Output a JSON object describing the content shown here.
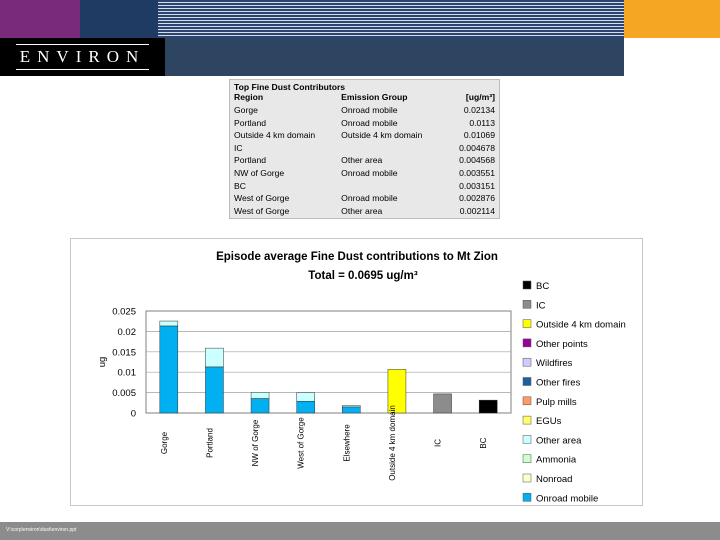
{
  "header": {
    "logo_text": "ENVIRON",
    "colors": {
      "purple": "#7a2a7a",
      "navy": "#1f3a63",
      "orange": "#f5a623",
      "slate": "#2e4562"
    }
  },
  "table": {
    "title": "Top Fine Dust Contributors",
    "headers": [
      "Region",
      "Emission Group",
      "[ug/m³]"
    ],
    "rows": [
      [
        "Gorge",
        "Onroad mobile",
        "0.02134"
      ],
      [
        "Portland",
        "Onroad mobile",
        "0.0113"
      ],
      [
        "Outside 4 km domain",
        "Outside 4 km domain",
        "0.01069"
      ],
      [
        "IC",
        "",
        "0.004678"
      ],
      [
        "Portland",
        "Other area",
        "0.004568"
      ],
      [
        "NW of Gorge",
        "Onroad mobile",
        "0.003551"
      ],
      [
        "BC",
        "",
        "0.003151"
      ],
      [
        "West of Gorge",
        "Onroad mobile",
        "0.002876"
      ],
      [
        "West of Gorge",
        "Other area",
        "0.002114"
      ]
    ]
  },
  "chart_data": {
    "type": "bar",
    "title": "Episode average Fine Dust contributions to Mt Zion",
    "subtitle": "Total = 0.0695 ug/m³",
    "ylabel": "ug",
    "ylim": [
      0,
      0.025
    ],
    "yticks": [
      "0.025",
      "0.02",
      "0.015",
      "0.01",
      "0.005",
      "0"
    ],
    "grid": true,
    "legend_position": "right",
    "categories": [
      "Gorge",
      "Portland",
      "NW of Gorge",
      "West of Gorge",
      "Elsewhere",
      "Outside 4 km domain",
      "IC",
      "BC"
    ],
    "series": [
      {
        "name": "BC",
        "color": "#000000",
        "values": [
          0,
          0,
          0,
          0,
          0,
          0,
          0,
          0.00315
        ]
      },
      {
        "name": "IC",
        "color": "#8c8c8c",
        "values": [
          0,
          0,
          0,
          0,
          0,
          0,
          0.00468,
          0
        ]
      },
      {
        "name": "Outside 4 km domain",
        "color": "#ffff00",
        "values": [
          0,
          0,
          0,
          0,
          0,
          0.01069,
          0,
          0
        ]
      },
      {
        "name": "Other points",
        "color": "#990099",
        "values": [
          0,
          0,
          0,
          0,
          0,
          0,
          0,
          0
        ]
      },
      {
        "name": "Wildfires",
        "color": "#ccccff",
        "values": [
          0,
          0,
          0,
          0,
          0,
          0,
          0,
          0
        ]
      },
      {
        "name": "Other fires",
        "color": "#1f5fa0",
        "values": [
          0,
          0,
          0,
          0,
          0,
          0,
          0,
          0
        ]
      },
      {
        "name": "Pulp mills",
        "color": "#ff9966",
        "values": [
          0,
          0,
          0,
          0,
          0,
          0,
          0,
          0
        ]
      },
      {
        "name": "EGUs",
        "color": "#ffff66",
        "values": [
          0,
          0,
          0,
          0,
          0,
          0,
          0,
          0
        ]
      },
      {
        "name": "Other area",
        "color": "#ccffff",
        "values": [
          0.0012,
          0.0046,
          0.0015,
          0.0021,
          0.0003,
          0,
          0,
          0
        ]
      },
      {
        "name": "Ammonia",
        "color": "#ccffcc",
        "values": [
          0,
          0,
          0,
          0,
          0,
          0,
          0,
          0
        ]
      },
      {
        "name": "Nonroad",
        "color": "#ffffcc",
        "values": [
          0,
          0,
          0,
          0,
          0,
          0,
          0,
          0
        ]
      },
      {
        "name": "Onroad mobile",
        "color": "#00b0f0",
        "values": [
          0.02134,
          0.0113,
          0.00355,
          0.00288,
          0.0015,
          0,
          0,
          0
        ]
      }
    ],
    "stack_order": [
      "Onroad mobile",
      "Nonroad",
      "Ammonia",
      "Other area",
      "EGUs",
      "Pulp mills",
      "Other fires",
      "Wildfires",
      "Other points",
      "Outside 4 km domain",
      "IC",
      "BC"
    ]
  },
  "footer": {
    "path": "V:\\corp\\environ\\dust\\environ.ppt"
  }
}
